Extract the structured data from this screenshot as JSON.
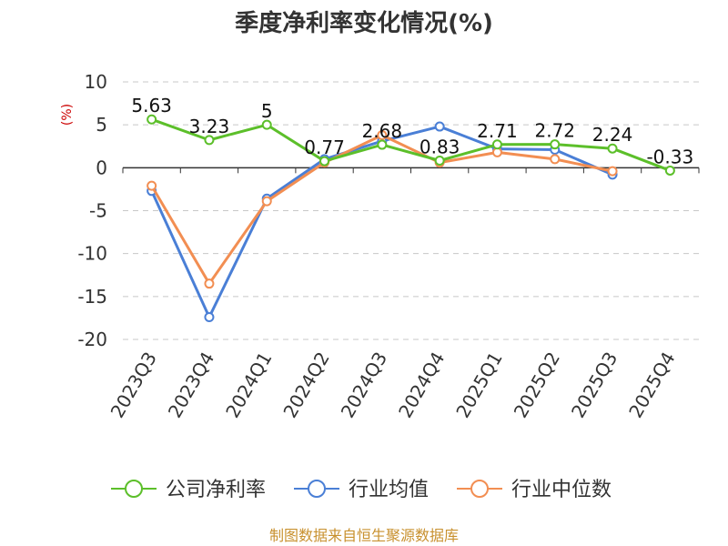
{
  "chart_data": {
    "type": "line",
    "title": "季度净利率变化情况(%)",
    "ylabel": "(%)",
    "xlabel": "",
    "ylim": [
      -20,
      10
    ],
    "yticks": [
      10,
      5,
      0,
      -5,
      -10,
      -15,
      -20
    ],
    "grid": true,
    "legend_position": "bottom",
    "categories": [
      "2023Q3",
      "2023Q4",
      "2024Q1",
      "2024Q2",
      "2024Q3",
      "2024Q4",
      "2025Q1",
      "2025Q2",
      "2025Q3",
      "2025Q4"
    ],
    "series": [
      {
        "name": "公司净利率",
        "color": "#5cbf2a",
        "values": [
          5.63,
          3.23,
          5,
          0.77,
          2.68,
          0.83,
          2.71,
          2.72,
          2.24,
          -0.33
        ],
        "labels": [
          "5.63",
          "3.23",
          "5",
          "0.77",
          "2.68",
          "0.83",
          "2.71",
          "2.72",
          "2.24",
          "-0.33"
        ]
      },
      {
        "name": "行业均值",
        "color": "#4a7fd6",
        "values": [
          -2.7,
          -17.4,
          -3.6,
          1.0,
          3.1,
          4.8,
          2.2,
          2.1,
          -0.8,
          null
        ]
      },
      {
        "name": "行业中位数",
        "color": "#f28e52",
        "values": [
          -2.1,
          -13.5,
          -3.9,
          0.6,
          3.8,
          0.6,
          1.8,
          1.0,
          -0.4,
          null
        ]
      }
    ]
  },
  "footer": {
    "source": "制图数据来自恒生聚源数据库"
  }
}
